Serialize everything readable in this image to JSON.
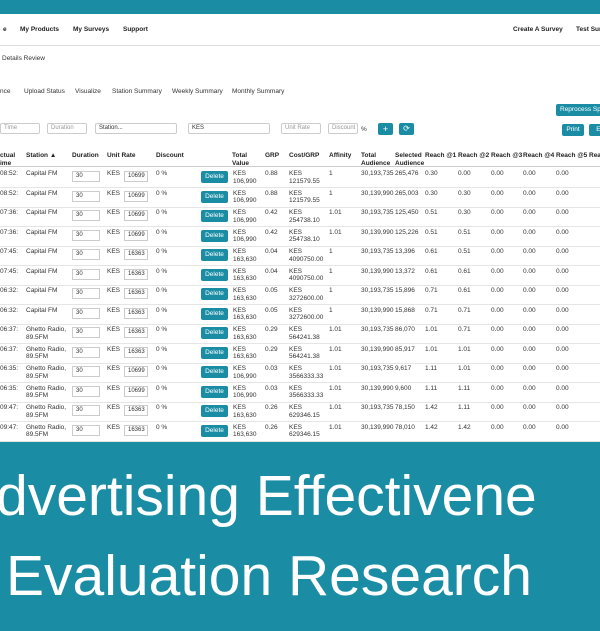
{
  "nav": {
    "left": [
      "e",
      "My Products",
      "My Surveys",
      "Support"
    ],
    "right": [
      "Create A Survey",
      "Test Surv"
    ]
  },
  "breadcrumb": "Details Review",
  "tabs": [
    "nce",
    "Upload Status",
    "Visualize",
    "Station Summary",
    "Weekly Summary",
    "Monthly Summary"
  ],
  "buttons": {
    "reprocess": "Reprocess Spo",
    "print": "Print",
    "export": "Ex",
    "add": "+",
    "refresh": "⟳"
  },
  "filters": {
    "time": "Time",
    "duration": "Duration",
    "station": "Station...",
    "currency": "KES",
    "unit_rate": "Unit Rate",
    "discount": "Discount",
    "percent": "%"
  },
  "table": {
    "headers": [
      "ctual ime",
      "Station ▲",
      "Duration",
      "Unit Rate",
      "Discount",
      "Total Value",
      "GRP",
      "Cost/GRP",
      "Affinity",
      "Total Audience",
      "Selected Audience",
      "Reach @1",
      "Reach @2",
      "Reach @3",
      "Reach @4",
      "Reach @5",
      "Rea"
    ],
    "delete_label": "Delete",
    "rows": [
      [
        "08:52:",
        "Capital FM",
        "30",
        "KES",
        "10699",
        "0 %",
        "KES 106,990",
        "0.88",
        "KES 121579.55",
        "1",
        "30,193,735",
        "265,476",
        "0.30",
        "0.00",
        "0.00",
        "0.00",
        "0.00"
      ],
      [
        "08:52:",
        "Capital FM",
        "30",
        "KES",
        "10699",
        "0 %",
        "KES 106,990",
        "0.88",
        "KES 121579.55",
        "1",
        "30,139,990",
        "265,003",
        "0.30",
        "0.30",
        "0.00",
        "0.00",
        "0.00"
      ],
      [
        "07:36:",
        "Capital FM",
        "30",
        "KES",
        "10699",
        "0 %",
        "KES 106,990",
        "0.42",
        "KES 254738.10",
        "1.01",
        "30,193,735",
        "125,450",
        "0.51",
        "0.30",
        "0.00",
        "0.00",
        "0.00"
      ],
      [
        "07:36:",
        "Capital FM",
        "30",
        "KES",
        "10699",
        "0 %",
        "KES 106,990",
        "0.42",
        "KES 254738.10",
        "1.01",
        "30,139,990",
        "125,226",
        "0.51",
        "0.51",
        "0.00",
        "0.00",
        "0.00"
      ],
      [
        "07:45:",
        "Capital FM",
        "30",
        "KES",
        "16363",
        "0 %",
        "KES 163,630",
        "0.04",
        "KES 4090750.00",
        "1",
        "30,193,735",
        "13,396",
        "0.61",
        "0.51",
        "0.00",
        "0.00",
        "0.00"
      ],
      [
        "07:45:",
        "Capital FM",
        "30",
        "KES",
        "16363",
        "0 %",
        "KES 163,630",
        "0.04",
        "KES 4090750.00",
        "1",
        "30,139,990",
        "13,372",
        "0.61",
        "0.61",
        "0.00",
        "0.00",
        "0.00"
      ],
      [
        "06:32:",
        "Capital FM",
        "30",
        "KES",
        "16363",
        "0 %",
        "KES 163,630",
        "0.05",
        "KES 3272600.00",
        "1",
        "30,193,735",
        "15,896",
        "0.71",
        "0.61",
        "0.00",
        "0.00",
        "0.00"
      ],
      [
        "06:32:",
        "Capital FM",
        "30",
        "KES",
        "16363",
        "0 %",
        "KES 163,630",
        "0.05",
        "KES 3272600.00",
        "1",
        "30,139,990",
        "15,868",
        "0.71",
        "0.71",
        "0.00",
        "0.00",
        "0.00"
      ],
      [
        "06:37:",
        "Ghetto Radio, 89.5FM",
        "30",
        "KES",
        "16363",
        "0 %",
        "KES 163,630",
        "0.29",
        "KES 564241.38",
        "1.01",
        "30,193,735",
        "86,070",
        "1.01",
        "0.71",
        "0.00",
        "0.00",
        "0.00"
      ],
      [
        "06:37:",
        "Ghetto Radio, 89.5FM",
        "30",
        "KES",
        "16363",
        "0 %",
        "KES 163,630",
        "0.29",
        "KES 564241.38",
        "1.01",
        "30,139,990",
        "85,917",
        "1.01",
        "1.01",
        "0.00",
        "0.00",
        "0.00"
      ],
      [
        "06:35:",
        "Ghetto Radio, 89.5FM",
        "30",
        "KES",
        "10699",
        "0 %",
        "KES 106,990",
        "0.03",
        "KES 3566333.33",
        "1.01",
        "30,193,735",
        "9,617",
        "1.11",
        "1.01",
        "0.00",
        "0.00",
        "0.00"
      ],
      [
        "06:35:",
        "Ghetto Radio, 89.5FM",
        "30",
        "KES",
        "10699",
        "0 %",
        "KES 106,990",
        "0.03",
        "KES 3566333.33",
        "1.01",
        "30,139,990",
        "9,600",
        "1.11",
        "1.11",
        "0.00",
        "0.00",
        "0.00"
      ],
      [
        "09:47:",
        "Ghetto Radio, 89.5FM",
        "30",
        "KES",
        "16363",
        "0 %",
        "KES 163,630",
        "0.26",
        "KES 629346.15",
        "1.01",
        "30,193,735",
        "78,150",
        "1.42",
        "1.11",
        "0.00",
        "0.00",
        "0.00"
      ],
      [
        "09:47:",
        "Ghetto Radio, 89.5FM",
        "30",
        "KES",
        "16363",
        "0 %",
        "KES 163,630",
        "0.26",
        "KES 629346.15",
        "1.01",
        "30,139,990",
        "78,010",
        "1.42",
        "1.42",
        "0.00",
        "0.00",
        "0.00"
      ]
    ]
  },
  "banner": [
    "dvertising Effectivene",
    "Evaluation Research"
  ]
}
